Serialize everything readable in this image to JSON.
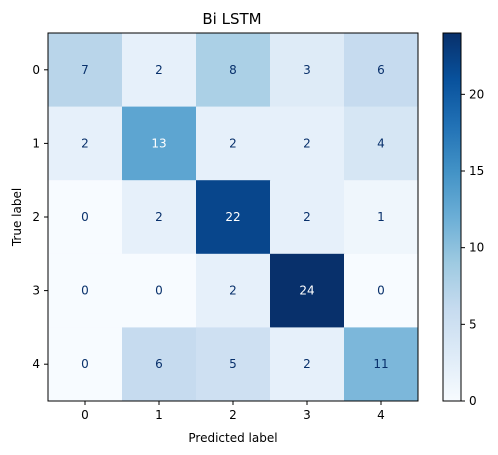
{
  "chart_data": {
    "type": "heatmap",
    "title": "Bi LSTM",
    "xlabel": "Predicted label",
    "ylabel": "True label",
    "x_tick_labels": [
      "0",
      "1",
      "2",
      "3",
      "4"
    ],
    "y_tick_labels": [
      "0",
      "1",
      "2",
      "3",
      "4"
    ],
    "values": [
      [
        7,
        2,
        8,
        3,
        6
      ],
      [
        2,
        13,
        2,
        2,
        4
      ],
      [
        0,
        2,
        22,
        2,
        1
      ],
      [
        0,
        0,
        2,
        24,
        0
      ],
      [
        0,
        6,
        5,
        2,
        11
      ]
    ],
    "colorbar": {
      "min": 0,
      "max": 24,
      "ticks": [
        0,
        5,
        10,
        15,
        20
      ],
      "tick_labels": [
        "0",
        "5",
        "10",
        "15",
        "20"
      ]
    },
    "colormap": "Blues",
    "grid": false
  }
}
